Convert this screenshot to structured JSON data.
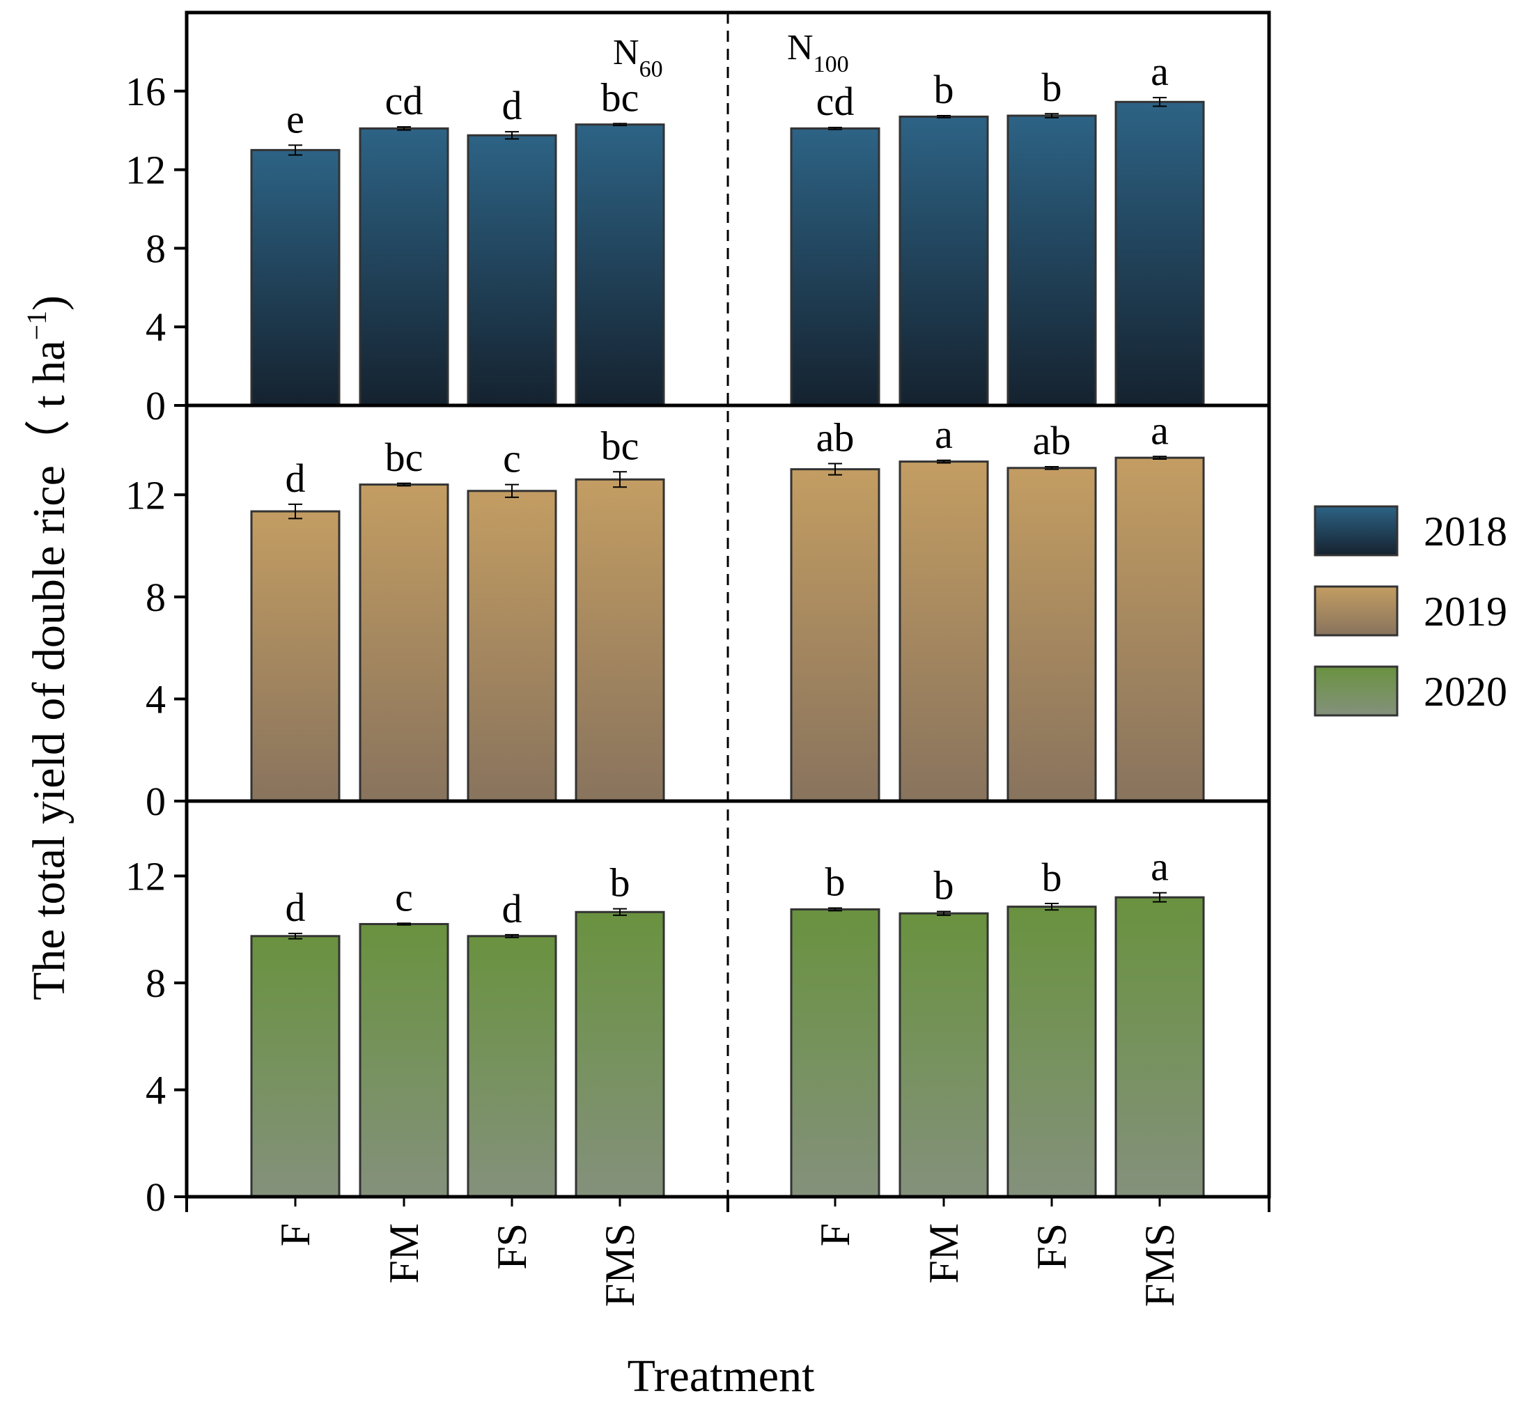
{
  "chart_data": {
    "type": "bar",
    "title": "",
    "xlabel": "Treatment",
    "ylabel": "The total yield of double rice（ t ha",
    "ylabel_superscript": "−1",
    "ylabel_close": ")",
    "groups": [
      {
        "label_main": "N",
        "label_sub": "60"
      },
      {
        "label_main": "N",
        "label_sub": "100"
      }
    ],
    "categories": [
      "F",
      "FM",
      "FS",
      "FMS",
      "F",
      "FM",
      "FS",
      "FMS"
    ],
    "legend": [
      {
        "name": "2018",
        "color_top": "#2d6385",
        "color_bottom": "#15222f"
      },
      {
        "name": "2019",
        "color_top": "#c39d62",
        "color_bottom": "#88735d"
      },
      {
        "name": "2020",
        "color_top": "#69923f",
        "color_bottom": "#84917c"
      }
    ],
    "series": [
      {
        "name": "2018",
        "ylim": [
          0,
          20
        ],
        "yticks": [
          "0",
          "4",
          "8",
          "12",
          "16"
        ],
        "yticks_values": [
          0,
          4,
          8,
          12,
          16
        ],
        "values": [
          13.0,
          14.1,
          13.75,
          14.3,
          14.1,
          14.7,
          14.75,
          15.45
        ],
        "errors": [
          0.25,
          0.08,
          0.18,
          0.05,
          0.05,
          0.05,
          0.1,
          0.22
        ],
        "letters": [
          "e",
          "cd",
          "d",
          "bc",
          "cd",
          "b",
          "b",
          "a"
        ]
      },
      {
        "name": "2019",
        "ylim": [
          0,
          15.5
        ],
        "yticks": [
          "0",
          "4",
          "8",
          "12"
        ],
        "yticks_values": [
          0,
          4,
          8,
          12
        ],
        "values": [
          11.35,
          12.4,
          12.15,
          12.6,
          13.0,
          13.3,
          13.05,
          13.45
        ],
        "errors": [
          0.28,
          0.05,
          0.25,
          0.3,
          0.22,
          0.05,
          0.05,
          0.05
        ],
        "letters": [
          "d",
          "bc",
          "c",
          "bc",
          "ab",
          "a",
          "ab",
          "a"
        ]
      },
      {
        "name": "2020",
        "ylim": [
          0,
          14.8
        ],
        "yticks": [
          "0",
          "4",
          "8",
          "12"
        ],
        "yticks_values": [
          0,
          4,
          8,
          12
        ],
        "values": [
          9.75,
          10.2,
          9.75,
          10.65,
          10.75,
          10.6,
          10.85,
          11.2
        ],
        "errors": [
          0.1,
          0.03,
          0.05,
          0.12,
          0.05,
          0.07,
          0.12,
          0.17
        ],
        "letters": [
          "d",
          "c",
          "d",
          "b",
          "b",
          "b",
          "b",
          "a"
        ]
      }
    ]
  }
}
